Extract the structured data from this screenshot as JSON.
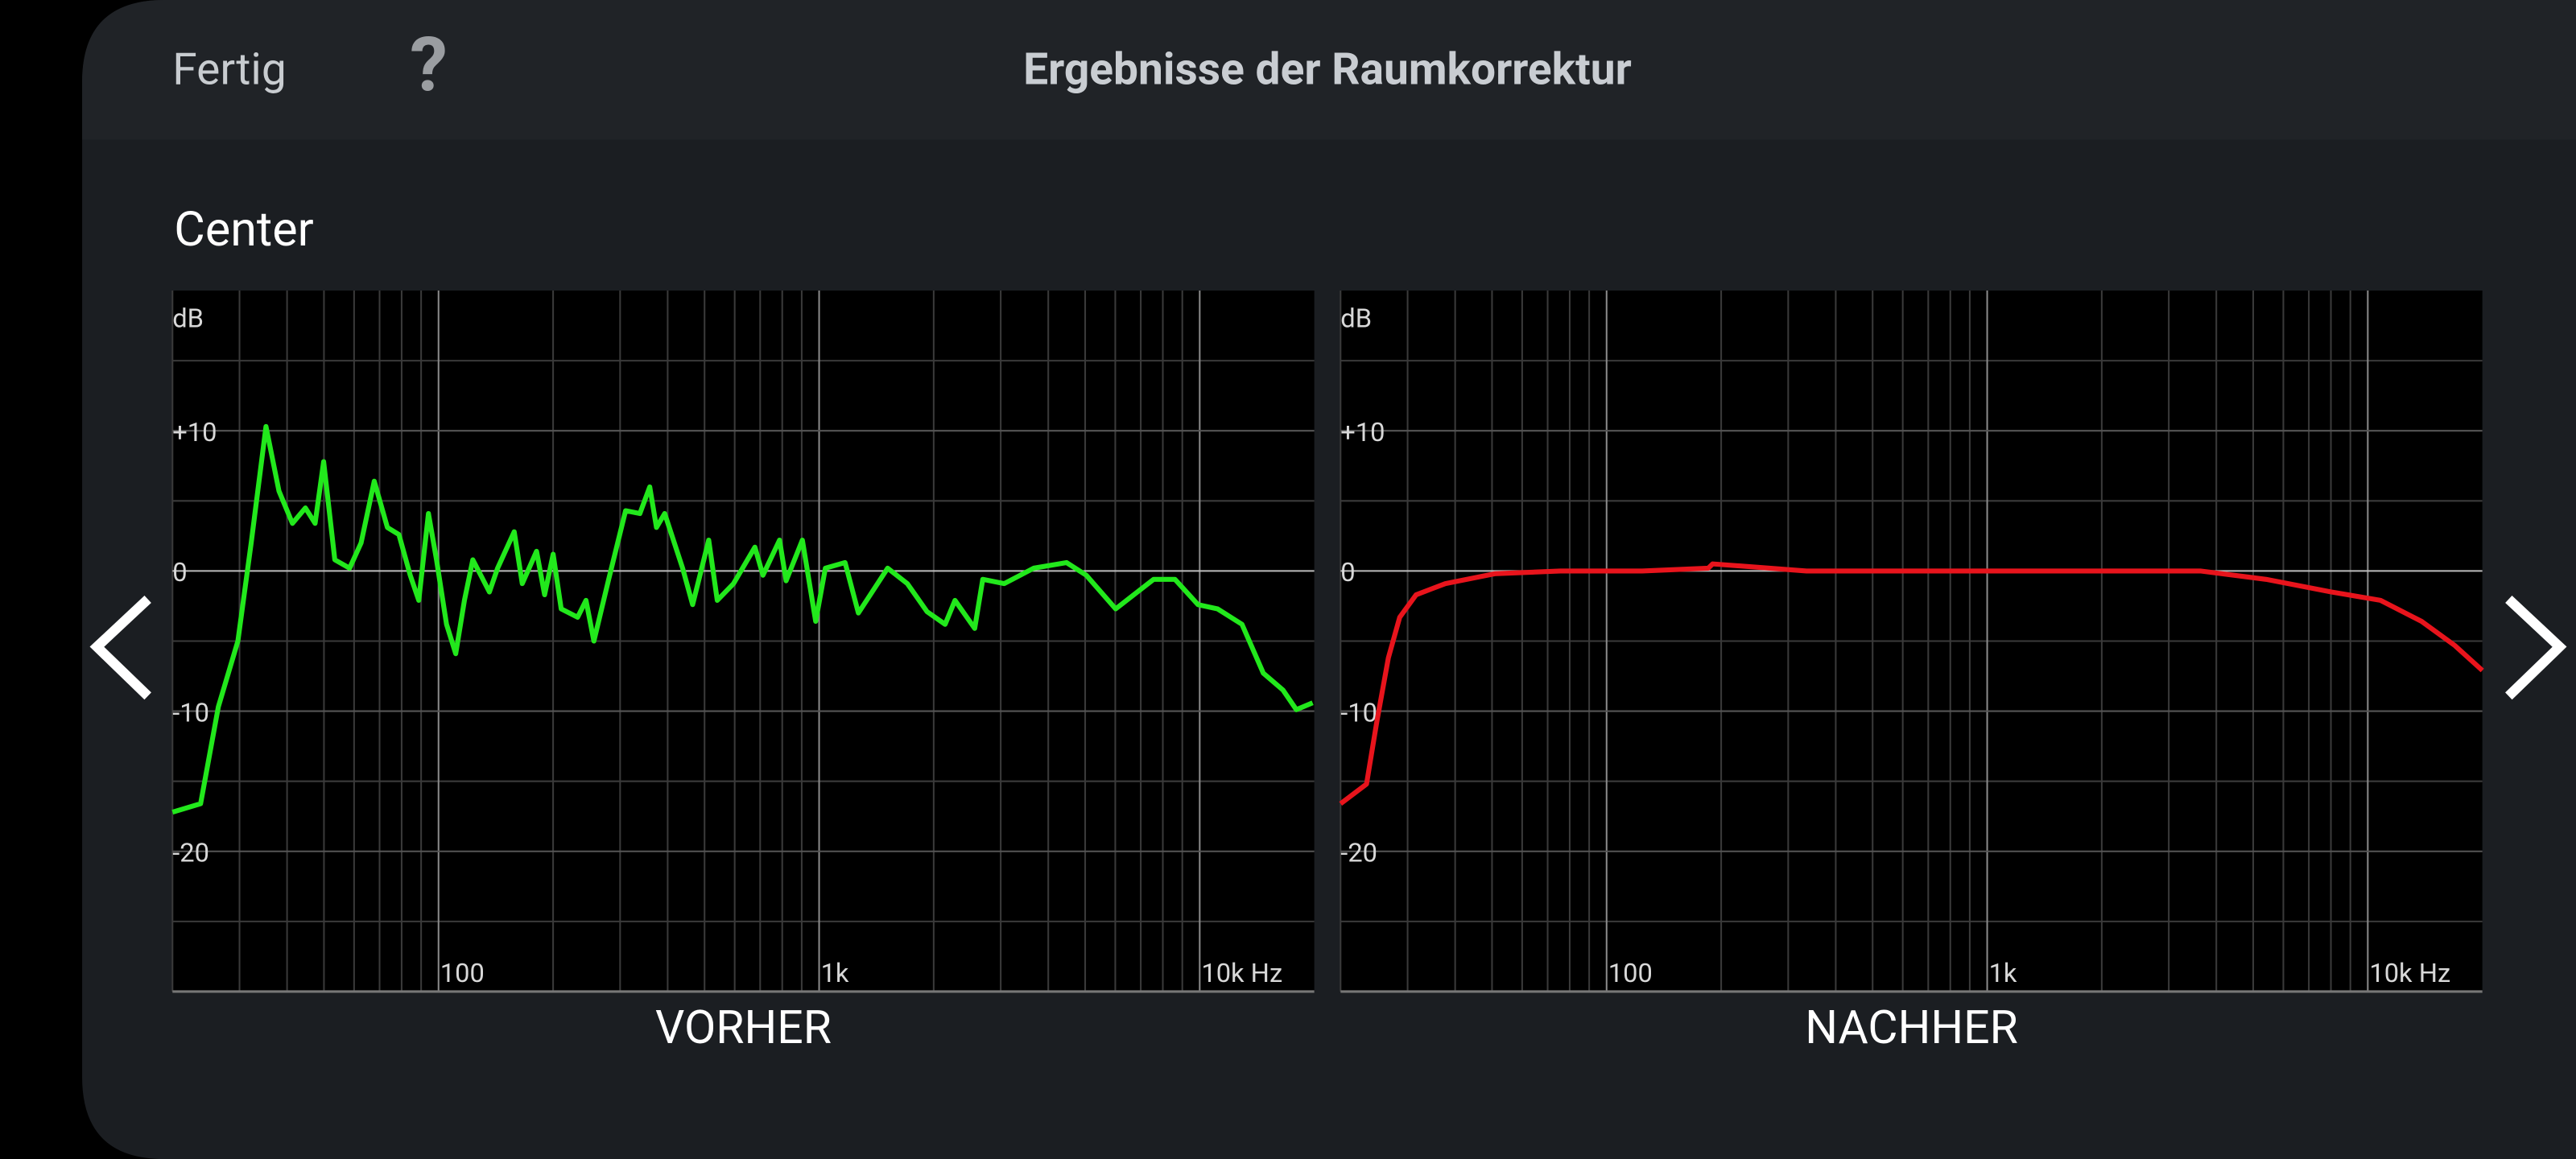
{
  "header": {
    "done": "Fertig",
    "help": "?",
    "title": "Ergebnisse der Raumkorrektur"
  },
  "channel": "Center",
  "chart_data": [
    {
      "type": "line",
      "title": "VORHER",
      "y_label": "dB",
      "color": "#22e81c",
      "log_x": true,
      "grid": true,
      "xlim": [
        20,
        20000
      ],
      "ylim": [
        -30,
        20
      ],
      "xticks": [
        100,
        {
          "value": 1000,
          "label": "1k"
        },
        {
          "value": 10000,
          "label": "10k Hz"
        }
      ],
      "xminor": [
        20,
        30,
        40,
        50,
        60,
        70,
        80,
        90,
        200,
        300,
        400,
        500,
        600,
        700,
        800,
        900,
        2000,
        3000,
        4000,
        5000,
        6000,
        7000,
        8000,
        9000
      ],
      "yticks": [
        {
          "value": 10,
          "label": "+10"
        },
        0,
        -10,
        -20
      ],
      "yminor": [
        15,
        5,
        -5,
        -15,
        -25
      ],
      "x": [
        20,
        23.7,
        26.4,
        29.7,
        32.2,
        35.2,
        38.1,
        41.3,
        44.7,
        47.4,
        49.9,
        53.4,
        58.4,
        62.6,
        67.8,
        73.4,
        78.7,
        84.3,
        88.7,
        94.1,
        98.8,
        105,
        111,
        117,
        123,
        136,
        143,
        158,
        166,
        181,
        190,
        200,
        210,
        232,
        244,
        256,
        280,
        310,
        338,
        359,
        374,
        393,
        438,
        465,
        513,
        540,
        596,
        678,
        712,
        787,
        819,
        904,
        979,
        1039,
        1170,
        1268,
        1514,
        1706,
        1922,
        2144,
        2275,
        2564,
        2692,
        3064,
        3664,
        4468,
        5034,
        6016,
        7564,
        8610,
        9894,
        11140,
        12920,
        14700,
        16560,
        17940,
        19800
      ],
      "values": [
        -17.2,
        -16.6,
        -9.7,
        -5.0,
        2.0,
        10.3,
        5.7,
        3.4,
        4.5,
        3.4,
        7.8,
        0.8,
        0.2,
        2.0,
        6.4,
        3.1,
        2.6,
        -0.3,
        -2.1,
        4.1,
        0.8,
        -3.8,
        -5.9,
        -2.1,
        0.8,
        -1.5,
        0.2,
        2.8,
        -0.9,
        1.4,
        -1.7,
        1.2,
        -2.7,
        -3.3,
        -2.1,
        -5.0,
        -0.6,
        4.3,
        4.1,
        6.0,
        3.1,
        4.1,
        0.2,
        -2.4,
        2.2,
        -2.1,
        -0.9,
        1.7,
        -0.3,
        2.2,
        -0.7,
        2.2,
        -3.6,
        0.2,
        0.6,
        -3.0,
        0.2,
        -0.9,
        -2.9,
        -3.8,
        -2.1,
        -4.1,
        -0.6,
        -0.9,
        0.2,
        0.6,
        -0.3,
        -2.7,
        -0.6,
        -0.6,
        -2.4,
        -2.7,
        -3.8,
        -7.3,
        -8.5,
        -9.9,
        -9.4
      ]
    },
    {
      "type": "line",
      "title": "NACHHER",
      "y_label": "dB",
      "color": "#e8141c",
      "log_x": true,
      "grid": true,
      "xlim": [
        20,
        20000
      ],
      "ylim": [
        -30,
        20
      ],
      "xticks": [
        100,
        {
          "value": 1000,
          "label": "1k"
        },
        {
          "value": 10000,
          "label": "10k Hz"
        }
      ],
      "xminor": [
        20,
        30,
        40,
        50,
        60,
        70,
        80,
        90,
        200,
        300,
        400,
        500,
        600,
        700,
        800,
        900,
        2000,
        3000,
        4000,
        5000,
        6000,
        7000,
        8000,
        9000
      ],
      "yticks": [
        {
          "value": 10,
          "label": "+10"
        },
        0,
        -10,
        -20
      ],
      "yminor": [
        15,
        5,
        -5,
        -15,
        -25
      ],
      "x": [
        20,
        23.4,
        24.9,
        26.7,
        28.6,
        31.6,
        37.7,
        50.8,
        75.6,
        124,
        185,
        190,
        335,
        1000,
        2438,
        3630,
        5400,
        8020,
        10800,
        13840,
        16900,
        20000
      ],
      "values": [
        -16.6,
        -15.2,
        -10.8,
        -6.2,
        -3.3,
        -1.7,
        -0.9,
        -0.2,
        0,
        0,
        0.2,
        0.5,
        0,
        0,
        0,
        0,
        -0.6,
        -1.5,
        -2.1,
        -3.6,
        -5.3,
        -7.1
      ]
    }
  ]
}
